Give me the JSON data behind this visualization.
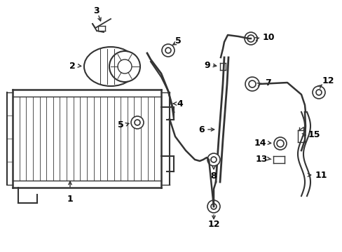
{
  "bg_color": "#ffffff",
  "line_color": "#333333",
  "lw": 1.0,
  "figsize": [
    4.89,
    3.6
  ],
  "dpi": 100
}
